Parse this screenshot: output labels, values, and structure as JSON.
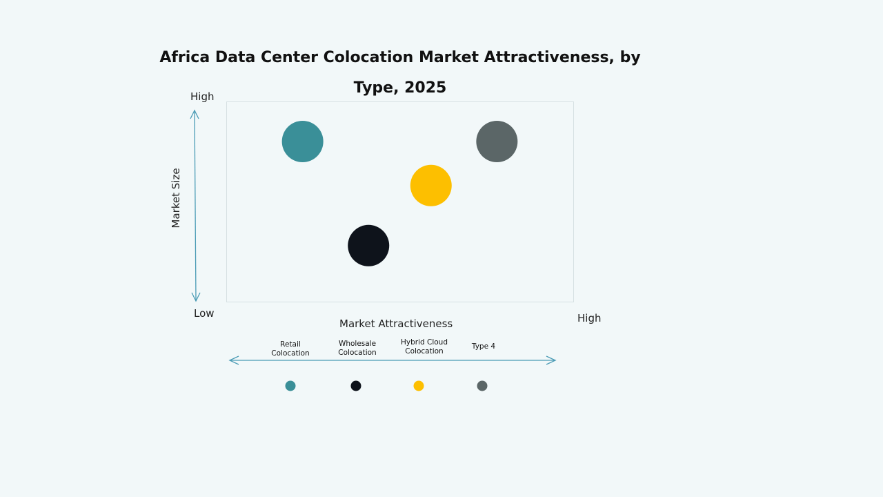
{
  "chart_data": {
    "type": "scatter",
    "title": "Africa Data Center Colocation Market Attractiveness, by Type, 2025",
    "xlabel": "Market Attractiveness",
    "ylabel": "Market Size",
    "x_low_label": "Low",
    "x_high_label": "High",
    "y_high_label": "High",
    "xlim": [
      0,
      100
    ],
    "ylim": [
      0,
      100
    ],
    "grid": false,
    "legend_placement": "bottom",
    "points": [
      {
        "name": "Retail Colocation",
        "label_lines": [
          "Retail",
          "Colocation"
        ],
        "x": 22,
        "y": 80,
        "color": "#3a8f98"
      },
      {
        "name": "Wholesale Colocation",
        "label_lines": [
          "Wholesale",
          "Colocation"
        ],
        "x": 41,
        "y": 28,
        "color": "#0e131b"
      },
      {
        "name": "Hybrid Cloud Colocation",
        "label_lines": [
          "Hybrid Cloud",
          "Colocation"
        ],
        "x": 59,
        "y": 58,
        "color": "#fdbf00"
      },
      {
        "name": "Type 4",
        "label_lines": [
          "Type 4"
        ],
        "x": 78,
        "y": 80,
        "color": "#5b6667"
      }
    ],
    "axis_color": "#4a9bb5"
  }
}
